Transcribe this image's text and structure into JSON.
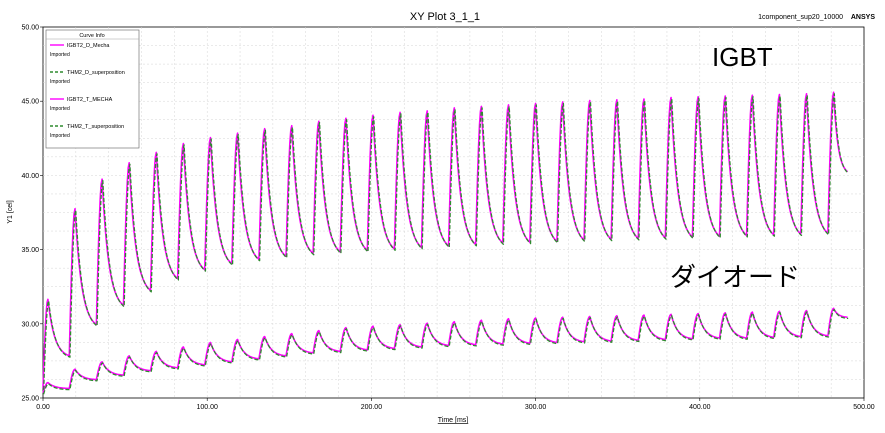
{
  "chart_data": {
    "type": "line",
    "title": "XY Plot 3_1_1",
    "subtitle": "1component_sup20_10000",
    "brand": "ANSYS",
    "xlabel": "Time [ms]",
    "ylabel": "Y1 [cel]",
    "xlim": [
      0,
      500
    ],
    "ylim": [
      25,
      50
    ],
    "x_ticks": [
      "0.00",
      "100.00",
      "200.00",
      "300.00",
      "400.00",
      "500.00"
    ],
    "y_ticks": [
      "25.00",
      "30.00",
      "35.00",
      "40.00",
      "45.00",
      "50.00"
    ],
    "grid": true,
    "legend": {
      "title": "Curve Info",
      "placement": "top-left",
      "entries": [
        {
          "name": "IGBT2_D_Mecha",
          "sub": "Imported",
          "color": "#ff00ff",
          "dash": "solid"
        },
        {
          "name": "THM2_D_superposition",
          "sub": "Imported",
          "color": "#2e8b2e",
          "dash": "dashed"
        },
        {
          "name": "IGBT2_T_MECHA",
          "sub": "Imported",
          "color": "#ff00ff",
          "dash": "solid"
        },
        {
          "name": "THM2_T_superposition",
          "sub": "Imported",
          "color": "#2e8b2e",
          "dash": "dashed"
        }
      ]
    },
    "annotations": [
      {
        "text": "IGBT",
        "near": "upper-right"
      },
      {
        "text": "ダイオード",
        "near": "lower-right"
      }
    ],
    "pulse_period_ms": 16.5,
    "igbt_series": {
      "peaks": [
        [
          3,
          31.6
        ],
        [
          19.5,
          37.7
        ],
        [
          36,
          39.7
        ],
        [
          52.5,
          40.8
        ],
        [
          69,
          41.5
        ],
        [
          85.5,
          42.1
        ],
        [
          102,
          42.5
        ],
        [
          118.5,
          42.8
        ],
        [
          135,
          43.1
        ],
        [
          151.5,
          43.3
        ],
        [
          168,
          43.6
        ],
        [
          184.5,
          43.8
        ],
        [
          201,
          44.0
        ],
        [
          217.5,
          44.2
        ],
        [
          234,
          44.3
        ],
        [
          250.5,
          44.5
        ],
        [
          267,
          44.6
        ],
        [
          283.5,
          44.7
        ],
        [
          300,
          44.8
        ],
        [
          316.5,
          44.9
        ],
        [
          333,
          45.0
        ],
        [
          349.5,
          45.05
        ],
        [
          366,
          45.1
        ],
        [
          382.5,
          45.2
        ],
        [
          399,
          45.25
        ],
        [
          415.5,
          45.3
        ],
        [
          432,
          45.35
        ],
        [
          448.5,
          45.4
        ],
        [
          465,
          45.45
        ],
        [
          481.5,
          45.55
        ]
      ],
      "valleys": [
        [
          0,
          25.6
        ],
        [
          16,
          27.8
        ],
        [
          32.5,
          29.9
        ],
        [
          49,
          31.2
        ],
        [
          65.5,
          32.2
        ],
        [
          82,
          33.0
        ],
        [
          98.5,
          33.6
        ],
        [
          115,
          34.0
        ],
        [
          131.5,
          34.3
        ],
        [
          148,
          34.5
        ],
        [
          164.5,
          34.7
        ],
        [
          181,
          34.8
        ],
        [
          197.5,
          34.9
        ],
        [
          214,
          35.0
        ],
        [
          230.5,
          35.1
        ],
        [
          247,
          35.2
        ],
        [
          263.5,
          35.3
        ],
        [
          280,
          35.4
        ],
        [
          296.5,
          35.45
        ],
        [
          313,
          35.5
        ],
        [
          329.5,
          35.6
        ],
        [
          346,
          35.65
        ],
        [
          362.5,
          35.7
        ],
        [
          379,
          35.75
        ],
        [
          395.5,
          35.8
        ],
        [
          412,
          35.85
        ],
        [
          428.5,
          35.9
        ],
        [
          445,
          35.95
        ],
        [
          461.5,
          36.0
        ],
        [
          478,
          36.05
        ],
        [
          490,
          40.2
        ]
      ]
    },
    "diode_series": {
      "peaks": [
        [
          3,
          26.0
        ],
        [
          19.5,
          26.9
        ],
        [
          36,
          27.4
        ],
        [
          52.5,
          27.8
        ],
        [
          69,
          28.1
        ],
        [
          85.5,
          28.4
        ],
        [
          102,
          28.7
        ],
        [
          118.5,
          28.9
        ],
        [
          135,
          29.1
        ],
        [
          151.5,
          29.3
        ],
        [
          168,
          29.5
        ],
        [
          184.5,
          29.7
        ],
        [
          201,
          29.8
        ],
        [
          217.5,
          29.9
        ],
        [
          234,
          30.0
        ],
        [
          250.5,
          30.1
        ],
        [
          267,
          30.2
        ],
        [
          283.5,
          30.3
        ],
        [
          300,
          30.35
        ],
        [
          316.5,
          30.4
        ],
        [
          333,
          30.45
        ],
        [
          349.5,
          30.5
        ],
        [
          366,
          30.55
        ],
        [
          382.5,
          30.6
        ],
        [
          399,
          30.65
        ],
        [
          415.5,
          30.7
        ],
        [
          432,
          30.75
        ],
        [
          448.5,
          30.8
        ],
        [
          465,
          30.85
        ],
        [
          481.5,
          31.0
        ]
      ],
      "valleys": [
        [
          0,
          25.3
        ],
        [
          16,
          25.6
        ],
        [
          32.5,
          26.2
        ],
        [
          49,
          26.5
        ],
        [
          65.5,
          26.8
        ],
        [
          82,
          27.0
        ],
        [
          98.5,
          27.2
        ],
        [
          115,
          27.4
        ],
        [
          131.5,
          27.6
        ],
        [
          148,
          27.8
        ],
        [
          164.5,
          28.0
        ],
        [
          181,
          28.1
        ],
        [
          197.5,
          28.2
        ],
        [
          214,
          28.3
        ],
        [
          230.5,
          28.4
        ],
        [
          247,
          28.5
        ],
        [
          263.5,
          28.55
        ],
        [
          280,
          28.6
        ],
        [
          296.5,
          28.65
        ],
        [
          313,
          28.7
        ],
        [
          329.5,
          28.75
        ],
        [
          346,
          28.8
        ],
        [
          362.5,
          28.85
        ],
        [
          379,
          28.9
        ],
        [
          395.5,
          28.95
        ],
        [
          412,
          29.0
        ],
        [
          428.5,
          29.0
        ],
        [
          445,
          29.05
        ],
        [
          461.5,
          29.1
        ],
        [
          478,
          29.15
        ],
        [
          490,
          30.4
        ]
      ]
    }
  }
}
